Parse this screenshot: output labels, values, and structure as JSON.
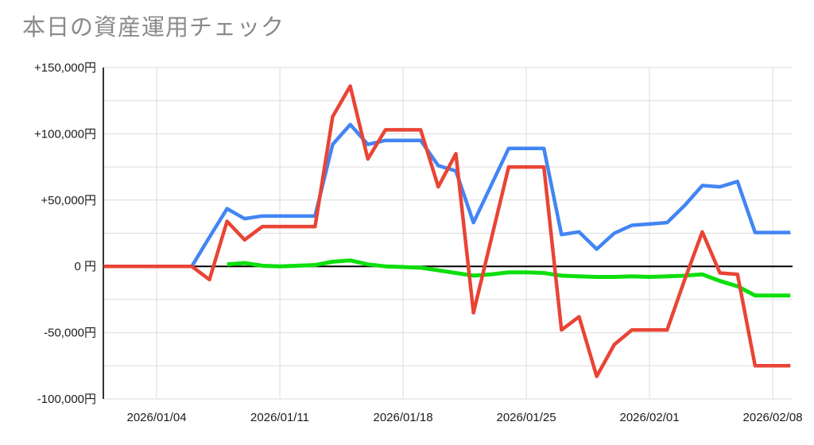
{
  "header": {
    "title": "本日の資産運用チェック"
  },
  "chart_data": {
    "type": "line",
    "title": "本日の資産運用チェック",
    "grid": true,
    "legend": "none",
    "ylim": [
      -100000,
      150000
    ],
    "minor_grid_step": 25000,
    "y_tick_values": [
      150000,
      100000,
      50000,
      0,
      -50000,
      -100000
    ],
    "y_tick_labels": [
      "+150,000円",
      "+100,000円",
      "+50,000円",
      "0 円",
      "-50,000円",
      "-100,000円"
    ],
    "x_tick_indices": [
      3,
      10,
      17,
      24,
      31,
      38
    ],
    "x_tick_labels": [
      "2026/01/04",
      "2026/01/11",
      "2026/01/18",
      "2026/01/25",
      "2026/02/01",
      "2026/02/08"
    ],
    "x": [
      "2026/01/01",
      "2026/01/02",
      "2026/01/03",
      "2026/01/04",
      "2026/01/05",
      "2026/01/06",
      "2026/01/07",
      "2026/01/08",
      "2026/01/09",
      "2026/01/10",
      "2026/01/11",
      "2026/01/12",
      "2026/01/13",
      "2026/01/14",
      "2026/01/15",
      "2026/01/16",
      "2026/01/17",
      "2026/01/18",
      "2026/01/19",
      "2026/01/20",
      "2026/01/21",
      "2026/01/22",
      "2026/01/23",
      "2026/01/24",
      "2026/01/25",
      "2026/01/26",
      "2026/01/27",
      "2026/01/28",
      "2026/01/29",
      "2026/01/30",
      "2026/01/31",
      "2026/02/01",
      "2026/02/02",
      "2026/02/03",
      "2026/02/04",
      "2026/02/05",
      "2026/02/06",
      "2026/02/07",
      "2026/02/08",
      "2026/02/09"
    ],
    "series": [
      {
        "name": "blue",
        "color": "#4285f4",
        "values": [
          0,
          0,
          0,
          0,
          0,
          0,
          22000,
          43500,
          36000,
          38000,
          38000,
          38000,
          38000,
          92000,
          107000,
          92000,
          95000,
          95000,
          95000,
          76000,
          72000,
          33000,
          61000,
          89000,
          89000,
          89000,
          24000,
          26000,
          13000,
          25000,
          31000,
          32000,
          33000,
          46000,
          61000,
          60000,
          64000,
          25500,
          25500,
          25500
        ]
      },
      {
        "name": "green",
        "color": "#0ddf0d",
        "values": [
          null,
          null,
          null,
          null,
          null,
          null,
          null,
          1500,
          2500,
          500,
          0,
          500,
          1000,
          3500,
          4500,
          1500,
          0,
          -500,
          -1000,
          -3000,
          -5000,
          -7000,
          -6000,
          -4500,
          -4500,
          -5000,
          -7000,
          -7500,
          -8000,
          -8000,
          -7500,
          -8000,
          -7500,
          -7000,
          -6000,
          -11000,
          -15000,
          -22000,
          -22000,
          -22000
        ]
      },
      {
        "name": "red",
        "color": "#e94436",
        "values": [
          0,
          0,
          0,
          0,
          0,
          0,
          -10000,
          34000,
          20000,
          30000,
          30000,
          30000,
          30000,
          113000,
          136000,
          81000,
          103000,
          103000,
          103000,
          60000,
          85000,
          -35000,
          20000,
          75000,
          75000,
          75000,
          -48000,
          -38000,
          -83000,
          -59000,
          -48000,
          -48000,
          -48000,
          -10000,
          26000,
          -5000,
          -6000,
          -75000,
          -75000,
          -75000
        ]
      }
    ]
  },
  "style_colors": {
    "grid": "#dcdcdc",
    "zero_line": "#000000",
    "axis_line": "#333333",
    "tick_text": "#1c1c1c",
    "title_text": "#8a8a8a",
    "background": "#ffffff"
  }
}
